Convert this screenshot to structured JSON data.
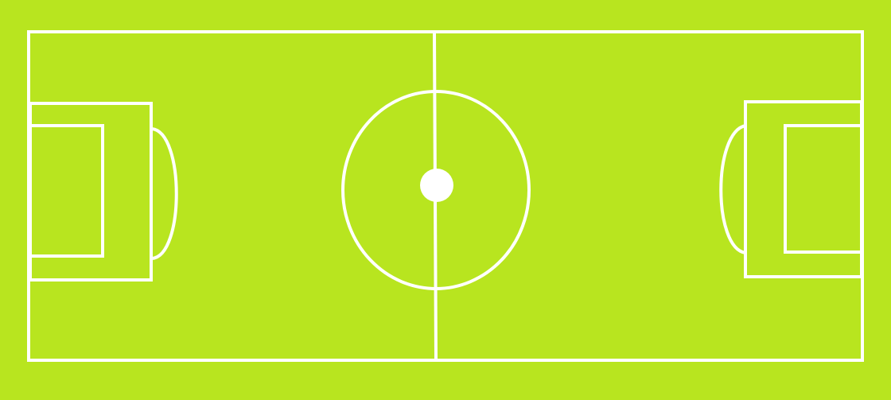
{
  "field": {
    "grass_color": "#b8e51f",
    "line_color": "#ffffff"
  }
}
